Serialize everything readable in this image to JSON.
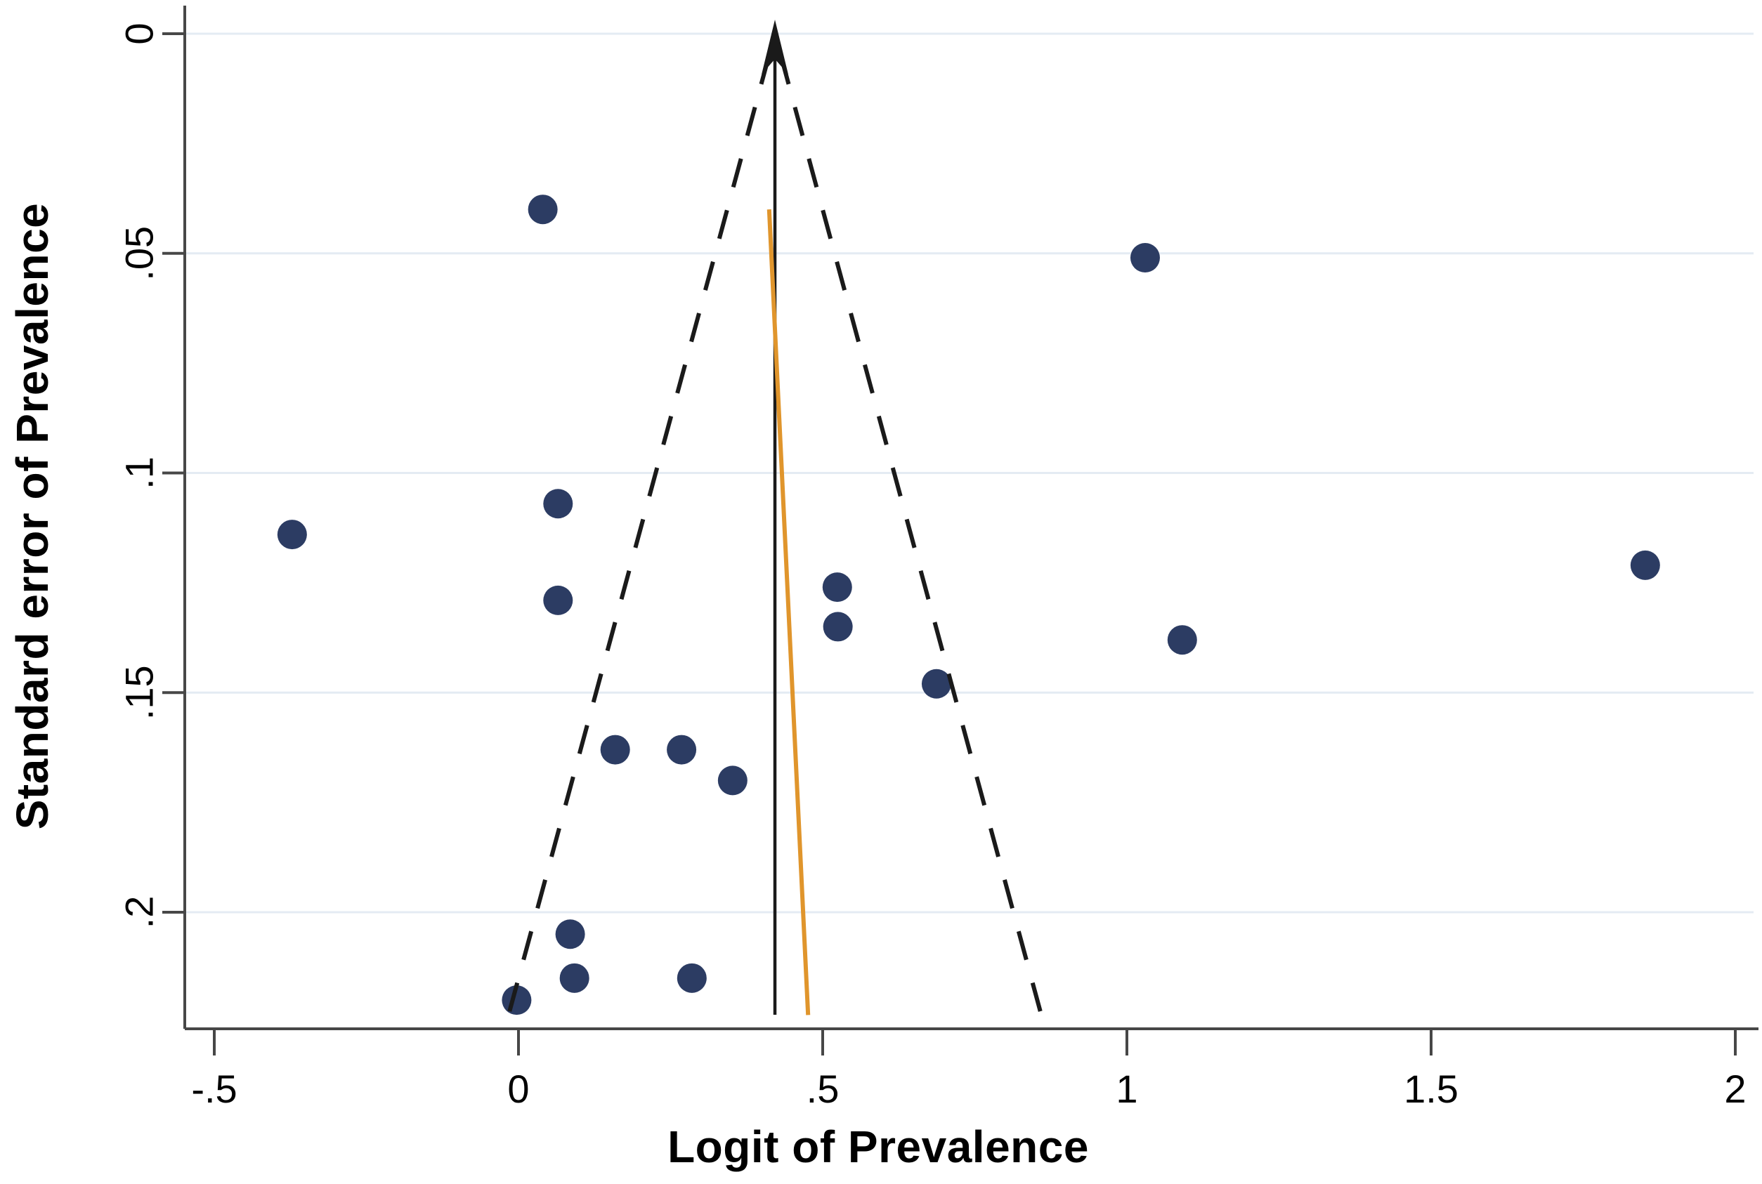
{
  "figure": {
    "background": "#ffffff"
  },
  "chart_data": {
    "type": "scatter",
    "subtype": "funnel-plot",
    "title": "",
    "xlabel": "Logit of Prevalence",
    "ylabel": "Standard error of Prevalence",
    "xlim": [
      -0.549,
      2.035
    ],
    "ylim": [
      0,
      0.2265
    ],
    "y_axis_reversed": true,
    "grid": "horizontal-only",
    "legend": "none",
    "x_ticks": [
      {
        "value": -0.5,
        "label": "-.5"
      },
      {
        "value": 0,
        "label": "0"
      },
      {
        "value": 0.5,
        "label": ".5"
      },
      {
        "value": 1,
        "label": "1"
      },
      {
        "value": 1.5,
        "label": "1.5"
      },
      {
        "value": 2,
        "label": "2"
      }
    ],
    "y_ticks": [
      {
        "value": 0,
        "label": "0"
      },
      {
        "value": 0.05,
        "label": ".05"
      },
      {
        "value": 0.1,
        "label": ".1"
      },
      {
        "value": 0.15,
        "label": ".15"
      },
      {
        "value": 0.2,
        "label": ".2"
      }
    ],
    "points": [
      {
        "x": 0.04,
        "se": 0.04
      },
      {
        "x": 1.03,
        "se": 0.051
      },
      {
        "x": 0.065,
        "se": 0.107
      },
      {
        "x": -0.372,
        "se": 0.114
      },
      {
        "x": 0.065,
        "se": 0.129
      },
      {
        "x": 0.524,
        "se": 0.126
      },
      {
        "x": 0.525,
        "se": 0.135
      },
      {
        "x": 0.687,
        "se": 0.148
      },
      {
        "x": 1.091,
        "se": 0.138
      },
      {
        "x": 1.852,
        "se": 0.121
      },
      {
        "x": 0.159,
        "se": 0.163
      },
      {
        "x": 0.268,
        "se": 0.163
      },
      {
        "x": 0.352,
        "se": 0.17
      },
      {
        "x": 0.085,
        "se": 0.205
      },
      {
        "x": 0.092,
        "se": 0.215
      },
      {
        "x": 0.285,
        "se": 0.215
      },
      {
        "x": -0.003,
        "se": 0.22
      }
    ],
    "estimate_line": {
      "x": 0.4215,
      "has_arrowhead_top": true
    },
    "funnel": {
      "center_x": 0.4215,
      "se_multiplier": 1.96,
      "se_top": 0.005,
      "se_bottom": 0.2235,
      "style": "dashed"
    },
    "regression_line": {
      "x_top": 0.412,
      "se_top": 0.04,
      "x_bottom": 0.476,
      "se_bottom": 0.2234
    },
    "colors": {
      "point": "#2c3c63",
      "funnel_dashed": "#1a1a1a",
      "estimate_line": "#1a1a1a",
      "regression_line": "#e0952c",
      "axis": "#474747",
      "gridline": "#e4ebf3",
      "background": "#ffffff"
    }
  }
}
